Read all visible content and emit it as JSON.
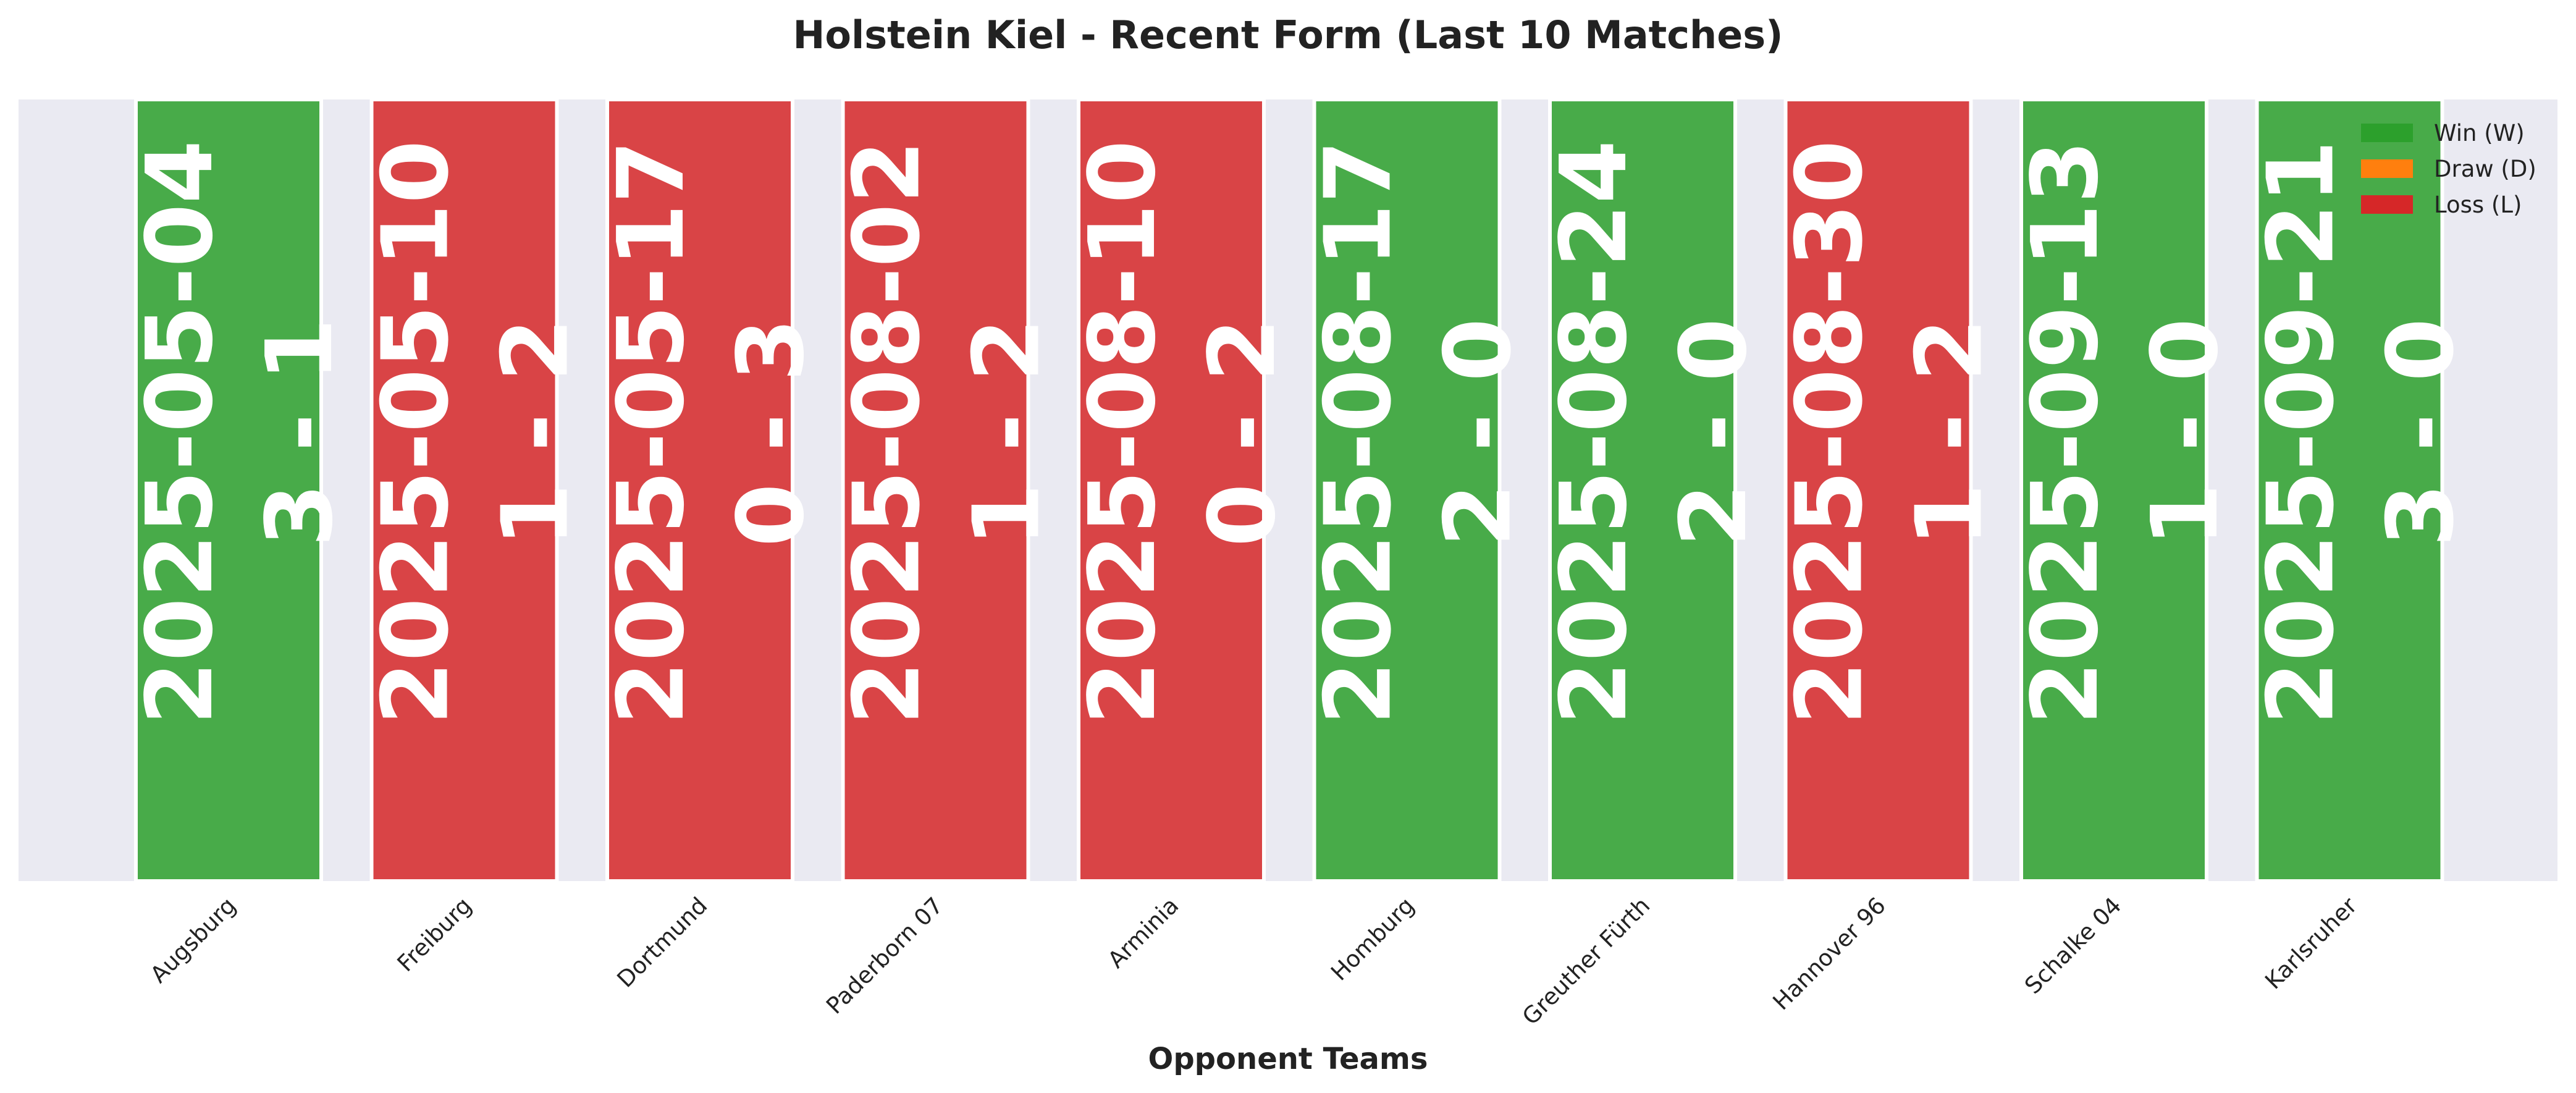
{
  "chart_data": {
    "type": "bar",
    "title": "Holstein Kiel - Recent Form (Last 10 Matches)",
    "xlabel": "Opponent Teams",
    "ylabel": "",
    "ylim": [
      0,
      1
    ],
    "grid": false,
    "legend": {
      "placement": "top-right",
      "entries": [
        {
          "label": "Win (W)",
          "color": "#2ca02c"
        },
        {
          "label": "Draw (D)",
          "color": "#ff7f0e"
        },
        {
          "label": "Loss (L)",
          "color": "#d62728"
        }
      ]
    },
    "categories": [
      "Augsburg",
      "Freiburg",
      "Dortmund",
      "Paderborn 07",
      "Arminia",
      "Homburg",
      "Greuther Fürth",
      "Hannover 96",
      "Schalke 04",
      "Karlsruher"
    ],
    "values": [
      1,
      1,
      1,
      1,
      1,
      1,
      1,
      1,
      1,
      1
    ],
    "results": [
      "W",
      "L",
      "L",
      "L",
      "L",
      "W",
      "W",
      "L",
      "W",
      "W"
    ],
    "dates": [
      "2025-05-04",
      "2025-05-10",
      "2025-05-17",
      "2025-08-02",
      "2025-08-10",
      "2025-08-17",
      "2025-08-24",
      "2025-08-30",
      "2025-09-13",
      "2025-09-21"
    ],
    "scores": [
      "3 - 1",
      "1 - 2",
      "0 - 3",
      "1 - 2",
      "0 - 2",
      "2 - 0",
      "2 - 0",
      "1 - 2",
      "1 - 0",
      "3 - 0"
    ],
    "result_colors": {
      "W": "#2ca02c",
      "D": "#ff7f0e",
      "L": "#d62728"
    },
    "plot_background": "#eaeaf2"
  }
}
